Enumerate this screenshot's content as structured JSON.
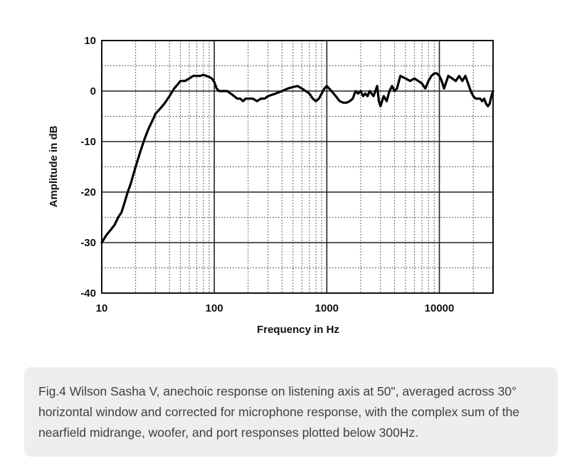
{
  "chart_data": {
    "type": "line",
    "xlabel": "Frequency in Hz",
    "ylabel": "Amplitude in dB",
    "x_scale": "log",
    "xlim": [
      10,
      30000
    ],
    "ylim": [
      -40,
      10
    ],
    "grid": true,
    "x_ticks": [
      10,
      100,
      1000,
      10000
    ],
    "x_tick_labels": [
      "10",
      "100",
      "1000",
      "10000"
    ],
    "y_ticks": [
      10,
      0,
      -10,
      -20,
      -30,
      -40
    ],
    "y_tick_labels": [
      "10",
      "0",
      "-10",
      "-20",
      "-30",
      "-40"
    ],
    "series": [
      {
        "color": "#000000",
        "x": [
          10,
          11,
          12,
          13,
          14,
          15,
          16,
          17,
          18,
          20,
          22,
          24,
          26,
          28,
          30,
          33,
          36,
          40,
          44,
          48,
          50,
          55,
          60,
          65,
          70,
          75,
          80,
          85,
          90,
          95,
          100,
          105,
          110,
          120,
          130,
          140,
          150,
          160,
          170,
          180,
          190,
          200,
          220,
          240,
          260,
          280,
          300,
          350,
          400,
          450,
          500,
          550,
          600,
          650,
          700,
          750,
          800,
          850,
          900,
          950,
          1000,
          1100,
          1200,
          1300,
          1400,
          1500,
          1600,
          1700,
          1800,
          1900,
          2000,
          2100,
          2200,
          2300,
          2400,
          2500,
          2600,
          2700,
          2800,
          2900,
          3000,
          3200,
          3400,
          3600,
          3800,
          4000,
          4200,
          4500,
          5000,
          5500,
          6000,
          6500,
          7000,
          7500,
          8000,
          8500,
          9000,
          9500,
          10000,
          10500,
          11000,
          12000,
          13000,
          14000,
          15000,
          16000,
          17000,
          18000,
          19000,
          20000,
          21000,
          22000,
          23000,
          24000,
          25000,
          26000,
          27000,
          28000,
          29000,
          30000
        ],
        "y": [
          -30,
          -28.5,
          -27.5,
          -26.5,
          -25,
          -24,
          -22,
          -20,
          -18.5,
          -15,
          -12,
          -9.5,
          -7.5,
          -6,
          -4.5,
          -3.5,
          -2.5,
          -1,
          0.5,
          1.5,
          2,
          2,
          2.5,
          3,
          3,
          3,
          3.2,
          3,
          2.8,
          2.5,
          1.8,
          0.5,
          0,
          0,
          0,
          -0.5,
          -1,
          -1.5,
          -1.5,
          -2,
          -1.5,
          -1.5,
          -1.5,
          -2,
          -1.5,
          -1.5,
          -1,
          -0.5,
          0,
          0.5,
          0.8,
          1,
          0.5,
          0,
          -0.5,
          -1.5,
          -2,
          -1.5,
          -0.5,
          0.5,
          1,
          0,
          -1,
          -2,
          -2.3,
          -2.3,
          -2,
          -1.5,
          0,
          -0.5,
          0,
          -1,
          -0.5,
          -1,
          0,
          -0.5,
          -1,
          0,
          1,
          -2,
          -3,
          -1,
          -2,
          0,
          1,
          0,
          0.5,
          3,
          2.5,
          2,
          2.5,
          2,
          1.5,
          0.5,
          2,
          3,
          3.5,
          3.5,
          3,
          2,
          0.5,
          3,
          2.5,
          2,
          3,
          2,
          3,
          1.5,
          0,
          -1,
          -1.5,
          -1.5,
          -1.5,
          -2,
          -1.5,
          -2.5,
          -3,
          -2.5,
          -1,
          0
        ]
      }
    ]
  },
  "caption": {
    "text": "Fig.4 Wilson Sasha V, anechoic response on listening axis at 50\", averaged across 30° horizontal window and corrected for microphone response, with the complex sum of the nearfield midrange, woofer, and port responses plotted below 300Hz."
  },
  "colors": {
    "caption_background": "#eeeeee",
    "caption_text": "#3f3f3f",
    "curve": "#000000",
    "grid_major": "#222222",
    "grid_minor": "#666666"
  }
}
